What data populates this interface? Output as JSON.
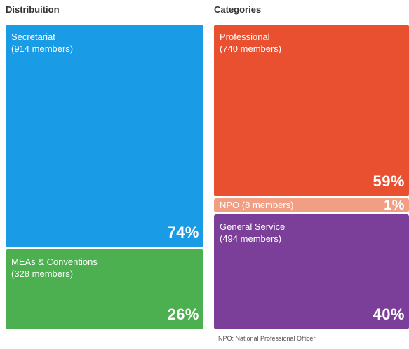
{
  "headings": {
    "left": "Distribuition",
    "right": "Categories"
  },
  "footnote": "NPO: National Professional Officer",
  "chart_data": [
    {
      "type": "treemap",
      "title": "Distribuition",
      "items": [
        {
          "name": "Secretariat",
          "count_label": "(914 members)",
          "members": 914,
          "percent_label": "74%",
          "percent": 74,
          "color": "#1a9be6"
        },
        {
          "name": "MEAs & Conventions",
          "count_label": "(328 members)",
          "members": 328,
          "percent_label": "26%",
          "percent": 26,
          "color": "#4caf50"
        }
      ]
    },
    {
      "type": "treemap",
      "title": "Categories",
      "items": [
        {
          "name": "Professional",
          "count_label": "(740 members)",
          "members": 740,
          "percent_label": "59%",
          "percent": 59,
          "color": "#e8502f"
        },
        {
          "name": "NPO (8 members)",
          "count_label": "",
          "members": 8,
          "percent_label": "1%",
          "percent": 1,
          "color": "#f29e82"
        },
        {
          "name": "General Service",
          "count_label": "(494 members)",
          "members": 494,
          "percent_label": "40%",
          "percent": 40,
          "color": "#7b3f99"
        }
      ]
    }
  ]
}
